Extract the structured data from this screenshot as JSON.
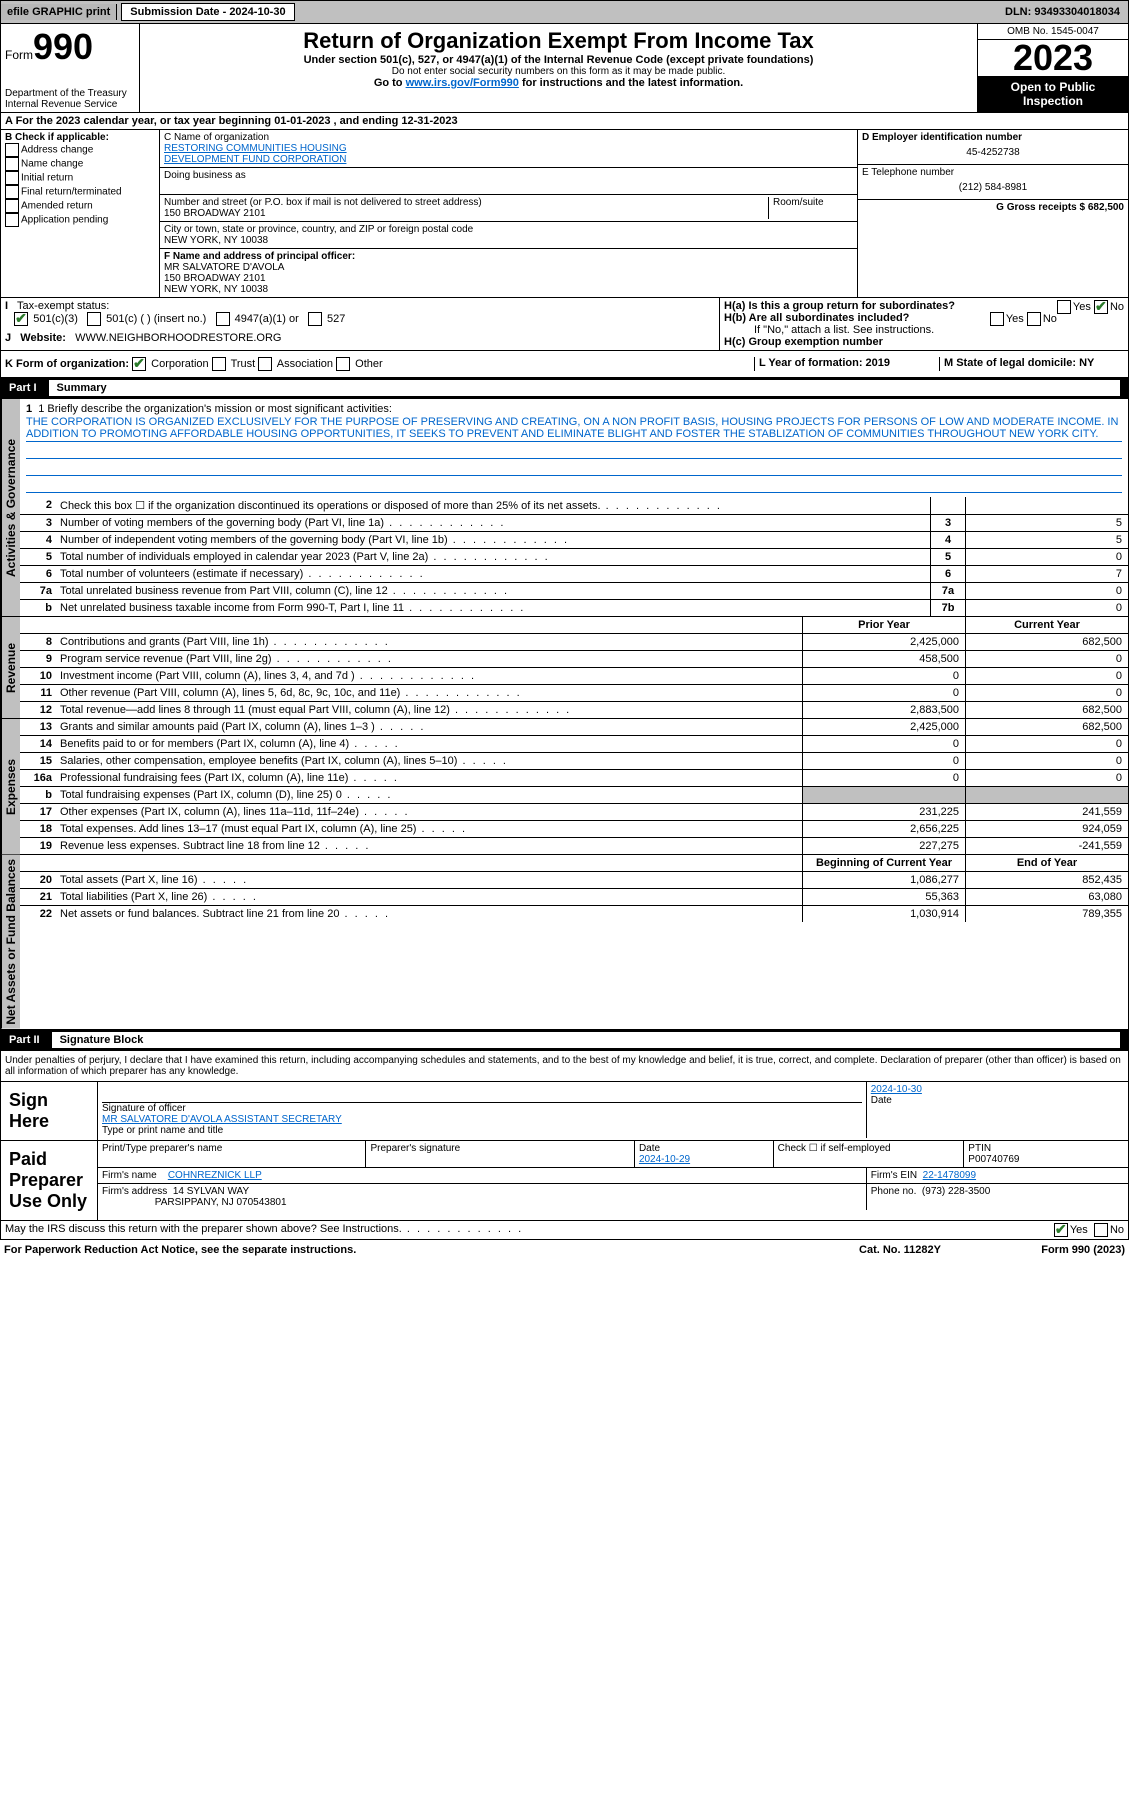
{
  "topbar": {
    "efile": "efile GRAPHIC print",
    "subdate_label": "Submission Date - 2024-10-30",
    "dln": "DLN: 93493304018034"
  },
  "header": {
    "form_label": "Form",
    "form_num": "990",
    "dept": "Department of the Treasury",
    "irs": "Internal Revenue Service",
    "title": "Return of Organization Exempt From Income Tax",
    "subtitle": "Under section 501(c), 527, or 4947(a)(1) of the Internal Revenue Code (except private foundations)",
    "warn": "Do not enter social security numbers on this form as it may be made public.",
    "goto": "Go to ",
    "goto_link": "www.irs.gov/Form990",
    "goto_rest": " for instructions and the latest information.",
    "omb": "OMB No. 1545-0047",
    "year": "2023",
    "open": "Open to Public Inspection"
  },
  "row_a": "A For the 2023 calendar year, or tax year beginning 01-01-2023   , and ending 12-31-2023",
  "box_b": {
    "label": "B Check if applicable:",
    "items": [
      "Address change",
      "Name change",
      "Initial return",
      "Final return/terminated",
      "Amended return",
      "Application pending"
    ]
  },
  "box_c": {
    "c_label": "C Name of organization",
    "c_name1": "RESTORING COMMUNITIES HOUSING",
    "c_name2": "DEVELOPMENT FUND CORPORATION",
    "dba_label": "Doing business as",
    "addr_label": "Number and street (or P.O. box if mail is not delivered to street address)",
    "room_label": "Room/suite",
    "addr": "150 BROADWAY 2101",
    "city_label": "City or town, state or province, country, and ZIP or foreign postal code",
    "city": "NEW YORK, NY  10038",
    "f_label": "F Name and address of principal officer:",
    "f_name": "MR SALVATORE D'AVOLA",
    "f_addr1": "150 BROADWAY 2101",
    "f_addr2": "NEW YORK, NY  10038"
  },
  "box_d": {
    "d_label": "D Employer identification number",
    "d_val": "45-4252738",
    "e_label": "E Telephone number",
    "e_val": "(212) 584-8981",
    "g_label": "G Gross receipts $ 682,500"
  },
  "row_i": {
    "i": "I",
    "label": "Tax-exempt status:",
    "c3": "501(c)(3)",
    "c": "501(c) (  ) (insert no.)",
    "a1": "4947(a)(1) or",
    "s527": "527"
  },
  "row_j": {
    "j": "J",
    "label": "Website:",
    "site": "WWW.NEIGHBORHOODRESTORE.ORG"
  },
  "row_h": {
    "ha": "H(a)  Is this a group return for subordinates?",
    "hb": "H(b)  Are all subordinates included?",
    "hb_note": "If \"No,\" attach a list. See instructions.",
    "hc": "H(c)  Group exemption number",
    "yes": "Yes",
    "no": "No"
  },
  "row_k": {
    "k": "K Form of organization:",
    "opts": [
      "Corporation",
      "Trust",
      "Association",
      "Other"
    ],
    "l": "L Year of formation: 2019",
    "m": "M State of legal domicile: NY"
  },
  "part1": {
    "label": "Part I",
    "title": "Summary"
  },
  "mission": {
    "q": "1  Briefly describe the organization's mission or most significant activities:",
    "text": "THE CORPORATION IS ORGANIZED EXCLUSIVELY FOR THE PURPOSE OF PRESERVING AND CREATING, ON A NON PROFIT BASIS, HOUSING PROJECTS FOR PERSONS OF LOW AND MODERATE INCOME. IN ADDITION TO PROMOTING AFFORDABLE HOUSING OPPORTUNITIES, IT SEEKS TO PREVENT AND ELIMINATE BLIGHT AND FOSTER THE STABLIZATION OF COMMUNITIES THROUGHOUT NEW YORK CITY."
  },
  "gov": [
    {
      "n": "2",
      "desc": "Check this box ☐ if the organization discontinued its operations or disposed of more than 25% of its net assets.",
      "c1": "",
      "c2": ""
    },
    {
      "n": "3",
      "desc": "Number of voting members of the governing body (Part VI, line 1a)",
      "c1": "3",
      "c2": "5"
    },
    {
      "n": "4",
      "desc": "Number of independent voting members of the governing body (Part VI, line 1b)",
      "c1": "4",
      "c2": "5"
    },
    {
      "n": "5",
      "desc": "Total number of individuals employed in calendar year 2023 (Part V, line 2a)",
      "c1": "5",
      "c2": "0"
    },
    {
      "n": "6",
      "desc": "Total number of volunteers (estimate if necessary)",
      "c1": "6",
      "c2": "7"
    },
    {
      "n": "7a",
      "desc": "Total unrelated business revenue from Part VIII, column (C), line 12",
      "c1": "7a",
      "c2": "0"
    },
    {
      "n": "b",
      "desc": "Net unrelated business taxable income from Form 990-T, Part I, line 11",
      "c1": "7b",
      "c2": "0"
    }
  ],
  "rev_hdr": {
    "prior": "Prior Year",
    "current": "Current Year"
  },
  "rev": [
    {
      "n": "8",
      "desc": "Contributions and grants (Part VIII, line 1h)",
      "c2": "2,425,000",
      "c3": "682,500"
    },
    {
      "n": "9",
      "desc": "Program service revenue (Part VIII, line 2g)",
      "c2": "458,500",
      "c3": "0"
    },
    {
      "n": "10",
      "desc": "Investment income (Part VIII, column (A), lines 3, 4, and 7d )",
      "c2": "0",
      "c3": "0"
    },
    {
      "n": "11",
      "desc": "Other revenue (Part VIII, column (A), lines 5, 6d, 8c, 9c, 10c, and 11e)",
      "c2": "0",
      "c3": "0"
    },
    {
      "n": "12",
      "desc": "Total revenue—add lines 8 through 11 (must equal Part VIII, column (A), line 12)",
      "c2": "2,883,500",
      "c3": "682,500"
    }
  ],
  "exp": [
    {
      "n": "13",
      "desc": "Grants and similar amounts paid (Part IX, column (A), lines 1–3 )",
      "c2": "2,425,000",
      "c3": "682,500"
    },
    {
      "n": "14",
      "desc": "Benefits paid to or for members (Part IX, column (A), line 4)",
      "c2": "0",
      "c3": "0"
    },
    {
      "n": "15",
      "desc": "Salaries, other compensation, employee benefits (Part IX, column (A), lines 5–10)",
      "c2": "0",
      "c3": "0"
    },
    {
      "n": "16a",
      "desc": "Professional fundraising fees (Part IX, column (A), line 11e)",
      "c2": "0",
      "c3": "0"
    },
    {
      "n": "b",
      "desc": "Total fundraising expenses (Part IX, column (D), line 25) 0",
      "c2": "",
      "c3": "",
      "gray": true
    },
    {
      "n": "17",
      "desc": "Other expenses (Part IX, column (A), lines 11a–11d, 11f–24e)",
      "c2": "231,225",
      "c3": "241,559"
    },
    {
      "n": "18",
      "desc": "Total expenses. Add lines 13–17 (must equal Part IX, column (A), line 25)",
      "c2": "2,656,225",
      "c3": "924,059"
    },
    {
      "n": "19",
      "desc": "Revenue less expenses. Subtract line 18 from line 12",
      "c2": "227,275",
      "c3": "-241,559"
    }
  ],
  "net_hdr": {
    "begin": "Beginning of Current Year",
    "end": "End of Year"
  },
  "net": [
    {
      "n": "20",
      "desc": "Total assets (Part X, line 16)",
      "c2": "1,086,277",
      "c3": "852,435"
    },
    {
      "n": "21",
      "desc": "Total liabilities (Part X, line 26)",
      "c2": "55,363",
      "c3": "63,080"
    },
    {
      "n": "22",
      "desc": "Net assets or fund balances. Subtract line 21 from line 20",
      "c2": "1,030,914",
      "c3": "789,355"
    }
  ],
  "part2": {
    "label": "Part II",
    "title": "Signature Block"
  },
  "perjury": "Under penalties of perjury, I declare that I have examined this return, including accompanying schedules and statements, and to the best of my knowledge and belief, it is true, correct, and complete. Declaration of preparer (other than officer) is based on all information of which preparer has any knowledge.",
  "sign": {
    "lbl": "Sign Here",
    "sig_lbl": "Signature of officer",
    "name": "MR SALVATORE D'AVOLA  ASSISTANT SECRETARY",
    "type_lbl": "Type or print name and title",
    "date_lbl": "Date",
    "date": "2024-10-30"
  },
  "paid": {
    "lbl": "Paid Preparer Use Only",
    "prep_name_lbl": "Print/Type preparer's name",
    "prep_sig_lbl": "Preparer's signature",
    "date_lbl": "Date",
    "date": "2024-10-29",
    "check_lbl": "Check ☐ if self-employed",
    "ptin_lbl": "PTIN",
    "ptin": "P00740769",
    "firm_name_lbl": "Firm's name",
    "firm_name": "COHNREZNICK LLP",
    "firm_ein_lbl": "Firm's EIN",
    "firm_ein": "22-1478099",
    "firm_addr_lbl": "Firm's address",
    "firm_addr1": "14 SYLVAN WAY",
    "firm_addr2": "PARSIPPANY, NJ  070543801",
    "phone_lbl": "Phone no.",
    "phone": "(973) 228-3500"
  },
  "discuss": {
    "q": "May the IRS discuss this return with the preparer shown above? See Instructions.",
    "yes": "Yes",
    "no": "No"
  },
  "footer": {
    "pra": "For Paperwork Reduction Act Notice, see the separate instructions.",
    "cat": "Cat. No. 11282Y",
    "form": "Form 990 (2023)"
  },
  "vtabs": {
    "gov": "Activities & Governance",
    "rev": "Revenue",
    "exp": "Expenses",
    "net": "Net Assets or Fund Balances"
  }
}
